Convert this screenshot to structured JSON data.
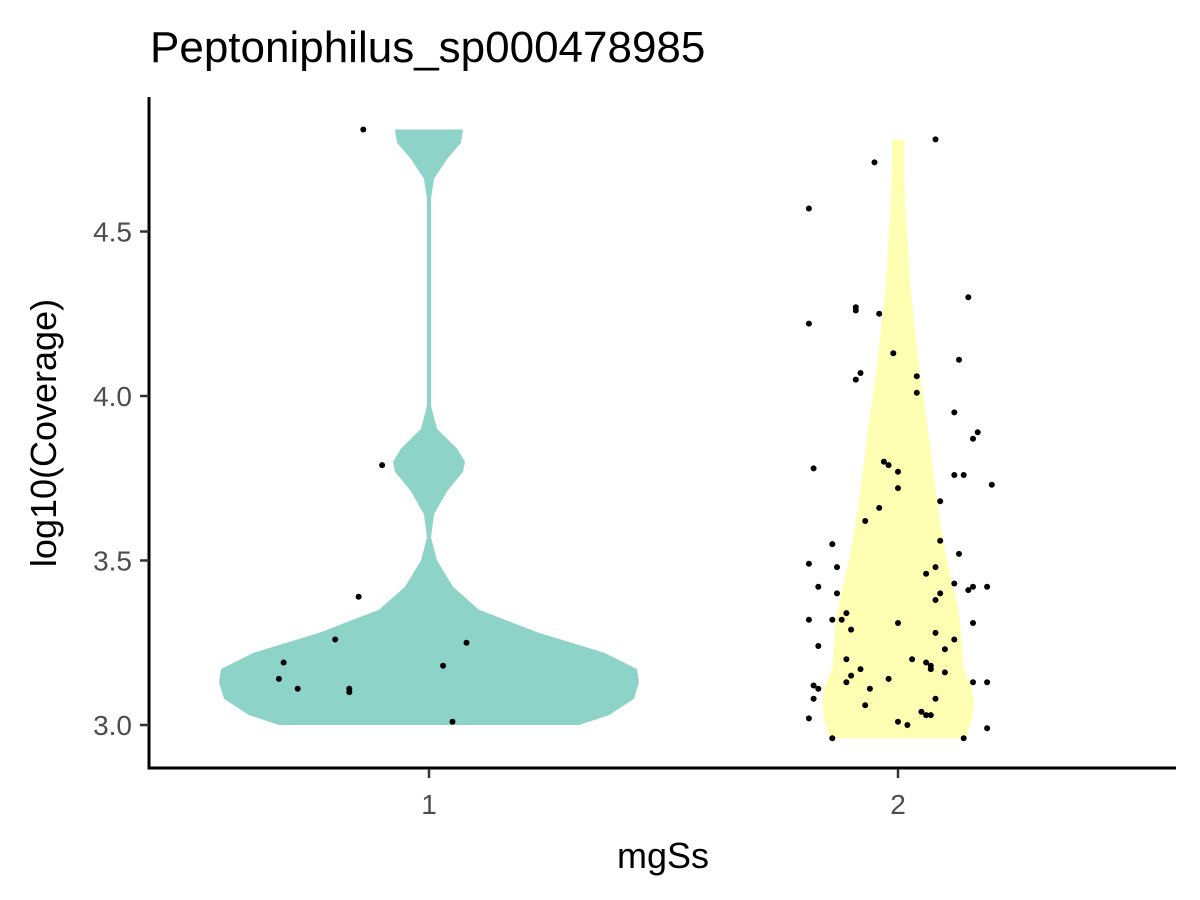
{
  "chart_data": {
    "type": "violin",
    "title": "Peptoniphilus_sp000478985",
    "xlabel": "mgSs",
    "ylabel": "log10(Coverage)",
    "categories": [
      "1",
      "2"
    ],
    "y_ticks": [
      "3.0",
      "3.5",
      "4.0",
      "4.5"
    ],
    "y_tick_values": [
      3.0,
      3.5,
      4.0,
      4.5
    ],
    "ylim": [
      2.87,
      4.84
    ],
    "grid": false,
    "legend": "none",
    "series": [
      {
        "category": "1",
        "color": "#8dd3c7",
        "points": [
          [
            0.86,
            4.81
          ],
          [
            0.9,
            3.79
          ],
          [
            0.85,
            3.39
          ],
          [
            0.8,
            3.26
          ],
          [
            1.08,
            3.25
          ],
          [
            0.69,
            3.19
          ],
          [
            1.03,
            3.18
          ],
          [
            0.68,
            3.14
          ],
          [
            0.72,
            3.11
          ],
          [
            0.83,
            3.11
          ],
          [
            0.83,
            3.1
          ],
          [
            1.05,
            3.01
          ]
        ]
      },
      {
        "category": "2",
        "color": "#ffffb3",
        "points": [
          [
            2.08,
            4.78
          ],
          [
            1.95,
            4.71
          ],
          [
            1.81,
            4.57
          ],
          [
            2.15,
            4.3
          ],
          [
            1.81,
            4.22
          ],
          [
            1.91,
            4.27
          ],
          [
            1.96,
            4.25
          ],
          [
            1.91,
            4.26
          ],
          [
            1.99,
            4.13
          ],
          [
            2.13,
            4.11
          ],
          [
            1.92,
            4.07
          ],
          [
            1.91,
            4.05
          ],
          [
            2.04,
            4.06
          ],
          [
            2.04,
            4.01
          ],
          [
            2.12,
            3.95
          ],
          [
            2.17,
            3.89
          ],
          [
            2.16,
            3.87
          ],
          [
            1.82,
            3.78
          ],
          [
            1.97,
            3.8
          ],
          [
            1.98,
            3.79
          ],
          [
            2.0,
            3.77
          ],
          [
            2.12,
            3.76
          ],
          [
            2.14,
            3.76
          ],
          [
            2.2,
            3.73
          ],
          [
            2.0,
            3.72
          ],
          [
            2.09,
            3.68
          ],
          [
            1.96,
            3.66
          ],
          [
            1.93,
            3.62
          ],
          [
            2.09,
            3.56
          ],
          [
            1.86,
            3.55
          ],
          [
            2.13,
            3.52
          ],
          [
            1.81,
            3.49
          ],
          [
            1.87,
            3.48
          ],
          [
            2.08,
            3.48
          ],
          [
            2.06,
            3.46
          ],
          [
            2.12,
            3.43
          ],
          [
            1.83,
            3.42
          ],
          [
            2.15,
            3.41
          ],
          [
            2.16,
            3.42
          ],
          [
            2.19,
            3.42
          ],
          [
            1.87,
            3.4
          ],
          [
            2.09,
            3.4
          ],
          [
            2.08,
            3.38
          ],
          [
            1.89,
            3.34
          ],
          [
            1.86,
            3.32
          ],
          [
            1.88,
            3.32
          ],
          [
            1.81,
            3.32
          ],
          [
            2.0,
            3.31
          ],
          [
            2.16,
            3.31
          ],
          [
            1.9,
            3.29
          ],
          [
            2.08,
            3.28
          ],
          [
            2.12,
            3.26
          ],
          [
            1.83,
            3.24
          ],
          [
            2.1,
            3.23
          ],
          [
            1.89,
            3.2
          ],
          [
            2.03,
            3.2
          ],
          [
            2.06,
            3.19
          ],
          [
            1.92,
            3.17
          ],
          [
            2.07,
            3.18
          ],
          [
            2.07,
            3.17
          ],
          [
            2.1,
            3.16
          ],
          [
            1.9,
            3.15
          ],
          [
            1.98,
            3.14
          ],
          [
            1.82,
            3.12
          ],
          [
            1.89,
            3.13
          ],
          [
            2.16,
            3.13
          ],
          [
            2.19,
            3.13
          ],
          [
            1.83,
            3.11
          ],
          [
            1.94,
            3.11
          ],
          [
            2.08,
            3.08
          ],
          [
            1.82,
            3.08
          ],
          [
            1.93,
            3.06
          ],
          [
            2.05,
            3.04
          ],
          [
            2.06,
            3.03
          ],
          [
            2.07,
            3.03
          ],
          [
            1.81,
            3.02
          ],
          [
            2.0,
            3.01
          ],
          [
            2.02,
            3.0
          ],
          [
            2.19,
            2.99
          ],
          [
            1.86,
            2.96
          ],
          [
            2.14,
            2.96
          ]
        ]
      }
    ]
  }
}
